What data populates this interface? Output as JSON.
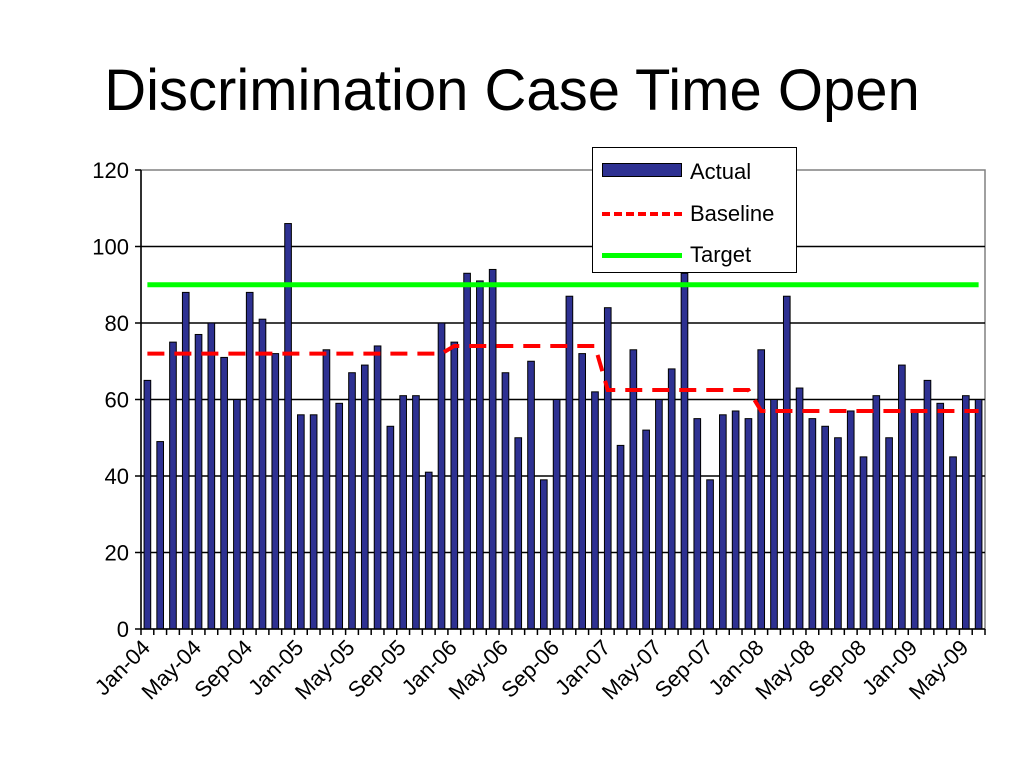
{
  "title": "Discrimination Case Time Open",
  "legend": {
    "actual": "Actual",
    "baseline": "Baseline",
    "target": "Target"
  },
  "colors": {
    "bar_fill": "#2E3192",
    "bar_stroke": "#000000",
    "baseline": "#FF0000",
    "target": "#00FF00"
  },
  "chart_data": {
    "type": "bar",
    "title": "Discrimination Case Time Open",
    "ylim": [
      0,
      120
    ],
    "yticks": [
      0,
      20,
      40,
      60,
      80,
      100,
      120
    ],
    "grid": true,
    "legend_position": "top-right",
    "x_tick_labels": [
      "Jan-04",
      "May-04",
      "Sep-04",
      "Jan-05",
      "May-05",
      "Sep-05",
      "Jan-06",
      "May-06",
      "Sep-06",
      "Jan-07",
      "May-07",
      "Sep-07",
      "Jan-08",
      "May-08",
      "Sep-08",
      "Jan-09",
      "May-09"
    ],
    "categories": [
      "Jan-04",
      "Feb-04",
      "Mar-04",
      "Apr-04",
      "May-04",
      "Jun-04",
      "Jul-04",
      "Aug-04",
      "Sep-04",
      "Oct-04",
      "Nov-04",
      "Dec-04",
      "Jan-05",
      "Feb-05",
      "Mar-05",
      "Apr-05",
      "May-05",
      "Jun-05",
      "Jul-05",
      "Aug-05",
      "Sep-05",
      "Oct-05",
      "Nov-05",
      "Dec-05",
      "Jan-06",
      "Feb-06",
      "Mar-06",
      "Apr-06",
      "May-06",
      "Jun-06",
      "Jul-06",
      "Aug-06",
      "Sep-06",
      "Oct-06",
      "Nov-06",
      "Dec-06",
      "Jan-07",
      "Feb-07",
      "Mar-07",
      "Apr-07",
      "May-07",
      "Jun-07",
      "Jul-07",
      "Aug-07",
      "Sep-07",
      "Oct-07",
      "Nov-07",
      "Dec-07",
      "Jan-08",
      "Feb-08",
      "Mar-08",
      "Apr-08",
      "May-08",
      "Jun-08",
      "Jul-08",
      "Aug-08",
      "Sep-08",
      "Oct-08",
      "Nov-08",
      "Dec-08",
      "Jan-09",
      "Feb-09",
      "Mar-09",
      "Apr-09",
      "May-09",
      "Jun-09"
    ],
    "series": [
      {
        "name": "Actual",
        "type": "bar",
        "values": [
          65,
          49,
          75,
          88,
          77,
          80,
          71,
          60,
          88,
          81,
          72,
          106,
          56,
          56,
          73,
          59,
          67,
          69,
          74,
          53,
          61,
          61,
          41,
          80,
          75,
          93,
          91,
          94,
          67,
          50,
          70,
          39,
          60,
          87,
          72,
          62,
          84,
          48,
          73,
          52,
          60,
          68,
          93,
          55,
          39,
          56,
          57,
          55,
          73,
          60,
          87,
          63,
          55,
          53,
          50,
          57,
          45,
          61,
          50,
          69,
          57,
          65,
          59,
          45,
          61,
          60
        ]
      },
      {
        "name": "Baseline",
        "type": "line",
        "style": "dashed",
        "values": [
          72,
          72,
          72,
          72,
          72,
          72,
          72,
          72,
          72,
          72,
          72,
          72,
          72,
          72,
          72,
          72,
          72,
          72,
          72,
          72,
          72,
          72,
          72,
          72,
          74,
          74,
          74,
          74,
          74,
          74,
          74,
          74,
          74,
          74,
          74,
          74,
          62.5,
          62.5,
          62.5,
          62.5,
          62.5,
          62.5,
          62.5,
          62.5,
          62.5,
          62.5,
          62.5,
          62.5,
          57,
          57,
          57,
          57,
          57,
          57,
          57,
          57,
          57,
          57,
          57,
          57,
          57,
          57,
          57,
          57,
          57,
          57
        ]
      },
      {
        "name": "Target",
        "type": "line",
        "style": "solid",
        "values": [
          90,
          90,
          90,
          90,
          90,
          90,
          90,
          90,
          90,
          90,
          90,
          90,
          90,
          90,
          90,
          90,
          90,
          90,
          90,
          90,
          90,
          90,
          90,
          90,
          90,
          90,
          90,
          90,
          90,
          90,
          90,
          90,
          90,
          90,
          90,
          90,
          90,
          90,
          90,
          90,
          90,
          90,
          90,
          90,
          90,
          90,
          90,
          90,
          90,
          90,
          90,
          90,
          90,
          90,
          90,
          90,
          90,
          90,
          90,
          90,
          90,
          90,
          90,
          90,
          90,
          90
        ]
      }
    ]
  }
}
